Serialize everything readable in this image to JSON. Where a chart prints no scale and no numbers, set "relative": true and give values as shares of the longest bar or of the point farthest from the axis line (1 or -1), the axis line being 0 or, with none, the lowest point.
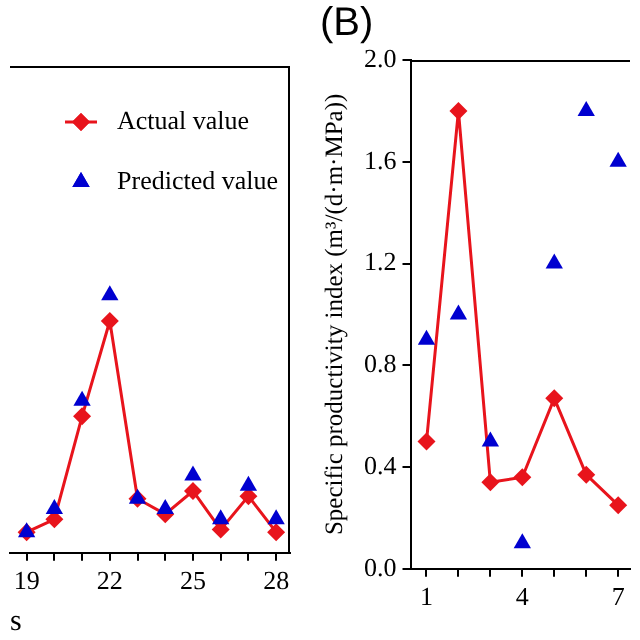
{
  "chart_data": [
    {
      "type": "line",
      "relative": true,
      "xlabel": "s",
      "legend": "top right",
      "x": [
        19,
        20,
        21,
        22,
        23,
        24,
        25,
        26,
        27,
        28
      ],
      "xlim": [
        18.4,
        28.5
      ],
      "xticks": [
        19,
        {
          "value": 20,
          "label": null
        },
        {
          "value": 21,
          "label": null
        },
        22,
        {
          "value": 23,
          "label": null
        },
        {
          "value": 24,
          "label": null
        },
        25,
        {
          "value": 26,
          "label": null
        },
        {
          "value": 27,
          "label": null
        },
        28
      ],
      "series": [
        {
          "name": "Actual value",
          "type": "line",
          "marker": "diamond",
          "color": "#e8141c",
          "values": [
            0.08,
            0.13,
            0.53,
            0.9,
            0.21,
            0.15,
            0.24,
            0.09,
            0.22,
            0.08
          ]
        },
        {
          "name": "Predicted value",
          "type": "scatter",
          "marker": "triangle",
          "color": "#0000d0",
          "values": [
            0.08,
            0.17,
            0.59,
            1,
            0.21,
            0.17,
            0.3,
            0.13,
            0.26,
            0.13
          ]
        }
      ]
    },
    {
      "type": "line",
      "title": "(B)",
      "ylabel": "Specific productivity index (m³/(d·m·MPa))",
      "x": [
        1,
        2,
        3,
        4,
        5,
        6,
        7
      ],
      "xlim": [
        0.5,
        7.37
      ],
      "xticks": [
        1,
        {
          "value": 2,
          "label": null
        },
        {
          "value": 3,
          "label": null
        },
        4,
        {
          "value": 5,
          "label": null
        },
        {
          "value": 6,
          "label": null
        },
        7
      ],
      "ylim": [
        0,
        2
      ],
      "yticks": [
        {
          "value": 0,
          "label": "0.0"
        },
        0.4,
        0.8,
        1.2,
        1.6,
        {
          "value": 2,
          "label": "2.0"
        }
      ],
      "series": [
        {
          "type": "line",
          "marker": "diamond",
          "color": "#e8141c",
          "values": [
            0.5,
            1.8,
            0.34,
            0.36,
            0.67,
            0.37,
            0.25
          ]
        },
        {
          "type": "scatter",
          "marker": "triangle",
          "color": "#0000d0",
          "values": [
            0.9,
            1.0,
            0.5,
            0.1,
            1.2,
            1.8,
            1.6
          ]
        }
      ]
    }
  ]
}
